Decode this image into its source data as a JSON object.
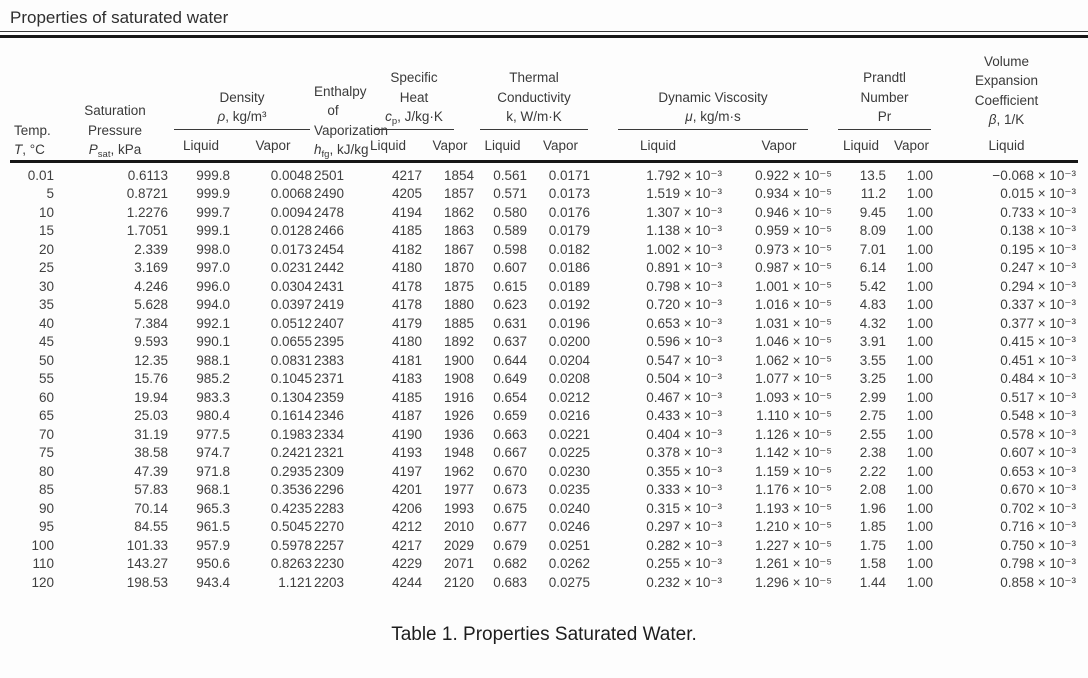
{
  "page": {
    "title": "Properties of saturated water",
    "caption": "Table 1. Properties Saturated Water."
  },
  "header": {
    "temp": {
      "line1": "Temp.",
      "sym": "T",
      "unit": ", °C"
    },
    "psat": {
      "line1": "Saturation",
      "line2": "Pressure",
      "sym": "P",
      "sub": "sat",
      "unit": ", kPa"
    },
    "density": {
      "line1": "Density",
      "sym": "ρ",
      "unit": ", kg/m³"
    },
    "hfg": {
      "line1": "Enthalpy",
      "line2": "of",
      "line3": "Vaporization",
      "sym": "h",
      "sub": "fg",
      "unit": ", kJ/kg"
    },
    "cp": {
      "line1": "Specific",
      "line2": "Heat",
      "sym": "c",
      "sub": "p",
      "unit": ", J/kg·K"
    },
    "k": {
      "line1": "Thermal",
      "line2": "Conductivity",
      "sym": "k",
      "unit": ", W/m·K"
    },
    "mu": {
      "line1": "Dynamic Viscosity",
      "sym": "μ",
      "unit": ", kg/m·s"
    },
    "pr": {
      "line1": "Prandtl",
      "line2": "Number",
      "sym": "Pr"
    },
    "beta": {
      "line1": "Volume",
      "line2": "Expansion",
      "line3": "Coefficient",
      "sym": "β",
      "unit": ", 1/K"
    },
    "sub_labels": {
      "liquid": "Liquid",
      "vapor": "Vapor"
    }
  },
  "table": {
    "col_keys": [
      "temp_c",
      "psat_kpa",
      "density_liquid",
      "density_vapor",
      "hfg_kj_kg",
      "cp_liquid",
      "cp_vapor",
      "k_liquid",
      "k_vapor",
      "mu_liquid",
      "mu_vapor",
      "pr_liquid",
      "pr_vapor",
      "beta_liquid"
    ],
    "rows": [
      [
        "0.01",
        "0.6113",
        "999.8",
        "0.0048",
        "2501",
        "4217",
        "1854",
        "0.561",
        "0.0171",
        "1.792 × 10⁻³",
        "0.922 × 10⁻⁵",
        "13.5",
        "1.00",
        "−0.068 × 10⁻³"
      ],
      [
        "5",
        "0.8721",
        "999.9",
        "0.0068",
        "2490",
        "4205",
        "1857",
        "0.571",
        "0.0173",
        "1.519 × 10⁻³",
        "0.934 × 10⁻⁵",
        "11.2",
        "1.00",
        "0.015 × 10⁻³"
      ],
      [
        "10",
        "1.2276",
        "999.7",
        "0.0094",
        "2478",
        "4194",
        "1862",
        "0.580",
        "0.0176",
        "1.307 × 10⁻³",
        "0.946 × 10⁻⁵",
        "9.45",
        "1.00",
        "0.733 × 10⁻³"
      ],
      [
        "15",
        "1.7051",
        "999.1",
        "0.0128",
        "2466",
        "4185",
        "1863",
        "0.589",
        "0.0179",
        "1.138 × 10⁻³",
        "0.959 × 10⁻⁵",
        "8.09",
        "1.00",
        "0.138 × 10⁻³"
      ],
      [
        "20",
        "2.339",
        "998.0",
        "0.0173",
        "2454",
        "4182",
        "1867",
        "0.598",
        "0.0182",
        "1.002 × 10⁻³",
        "0.973 × 10⁻⁵",
        "7.01",
        "1.00",
        "0.195 × 10⁻³"
      ],
      [
        "25",
        "3.169",
        "997.0",
        "0.0231",
        "2442",
        "4180",
        "1870",
        "0.607",
        "0.0186",
        "0.891 × 10⁻³",
        "0.987 × 10⁻⁵",
        "6.14",
        "1.00",
        "0.247 × 10⁻³"
      ],
      [
        "30",
        "4.246",
        "996.0",
        "0.0304",
        "2431",
        "4178",
        "1875",
        "0.615",
        "0.0189",
        "0.798 × 10⁻³",
        "1.001 × 10⁻⁵",
        "5.42",
        "1.00",
        "0.294 × 10⁻³"
      ],
      [
        "35",
        "5.628",
        "994.0",
        "0.0397",
        "2419",
        "4178",
        "1880",
        "0.623",
        "0.0192",
        "0.720 × 10⁻³",
        "1.016 × 10⁻⁵",
        "4.83",
        "1.00",
        "0.337 × 10⁻³"
      ],
      [
        "40",
        "7.384",
        "992.1",
        "0.0512",
        "2407",
        "4179",
        "1885",
        "0.631",
        "0.0196",
        "0.653 × 10⁻³",
        "1.031 × 10⁻⁵",
        "4.32",
        "1.00",
        "0.377 × 10⁻³"
      ],
      [
        "45",
        "9.593",
        "990.1",
        "0.0655",
        "2395",
        "4180",
        "1892",
        "0.637",
        "0.0200",
        "0.596 × 10⁻³",
        "1.046 × 10⁻⁵",
        "3.91",
        "1.00",
        "0.415 × 10⁻³"
      ],
      [
        "50",
        "12.35",
        "988.1",
        "0.0831",
        "2383",
        "4181",
        "1900",
        "0.644",
        "0.0204",
        "0.547 × 10⁻³",
        "1.062 × 10⁻⁵",
        "3.55",
        "1.00",
        "0.451 × 10⁻³"
      ],
      [
        "55",
        "15.76",
        "985.2",
        "0.1045",
        "2371",
        "4183",
        "1908",
        "0.649",
        "0.0208",
        "0.504 × 10⁻³",
        "1.077 × 10⁻⁵",
        "3.25",
        "1.00",
        "0.484 × 10⁻³"
      ],
      [
        "60",
        "19.94",
        "983.3",
        "0.1304",
        "2359",
        "4185",
        "1916",
        "0.654",
        "0.0212",
        "0.467 × 10⁻³",
        "1.093 × 10⁻⁵",
        "2.99",
        "1.00",
        "0.517 × 10⁻³"
      ],
      [
        "65",
        "25.03",
        "980.4",
        "0.1614",
        "2346",
        "4187",
        "1926",
        "0.659",
        "0.0216",
        "0.433 × 10⁻³",
        "1.110 × 10⁻⁵",
        "2.75",
        "1.00",
        "0.548 × 10⁻³"
      ],
      [
        "70",
        "31.19",
        "977.5",
        "0.1983",
        "2334",
        "4190",
        "1936",
        "0.663",
        "0.0221",
        "0.404 × 10⁻³",
        "1.126 × 10⁻⁵",
        "2.55",
        "1.00",
        "0.578 × 10⁻³"
      ],
      [
        "75",
        "38.58",
        "974.7",
        "0.2421",
        "2321",
        "4193",
        "1948",
        "0.667",
        "0.0225",
        "0.378 × 10⁻³",
        "1.142 × 10⁻⁵",
        "2.38",
        "1.00",
        "0.607 × 10⁻³"
      ],
      [
        "80",
        "47.39",
        "971.8",
        "0.2935",
        "2309",
        "4197",
        "1962",
        "0.670",
        "0.0230",
        "0.355 × 10⁻³",
        "1.159 × 10⁻⁵",
        "2.22",
        "1.00",
        "0.653 × 10⁻³"
      ],
      [
        "85",
        "57.83",
        "968.1",
        "0.3536",
        "2296",
        "4201",
        "1977",
        "0.673",
        "0.0235",
        "0.333 × 10⁻³",
        "1.176 × 10⁻⁵",
        "2.08",
        "1.00",
        "0.670 × 10⁻³"
      ],
      [
        "90",
        "70.14",
        "965.3",
        "0.4235",
        "2283",
        "4206",
        "1993",
        "0.675",
        "0.0240",
        "0.315 × 10⁻³",
        "1.193 × 10⁻⁵",
        "1.96",
        "1.00",
        "0.702 × 10⁻³"
      ],
      [
        "95",
        "84.55",
        "961.5",
        "0.5045",
        "2270",
        "4212",
        "2010",
        "0.677",
        "0.0246",
        "0.297 × 10⁻³",
        "1.210 × 10⁻⁵",
        "1.85",
        "1.00",
        "0.716 × 10⁻³"
      ],
      [
        "100",
        "101.33",
        "957.9",
        "0.5978",
        "2257",
        "4217",
        "2029",
        "0.679",
        "0.0251",
        "0.282 × 10⁻³",
        "1.227 × 10⁻⁵",
        "1.75",
        "1.00",
        "0.750 × 10⁻³"
      ],
      [
        "110",
        "143.27",
        "950.6",
        "0.8263",
        "2230",
        "4229",
        "2071",
        "0.682",
        "0.0262",
        "0.255 × 10⁻³",
        "1.261 × 10⁻⁵",
        "1.58",
        "1.00",
        "0.798 × 10⁻³"
      ],
      [
        "120",
        "198.53",
        "943.4",
        "1.121",
        "2203",
        "4244",
        "2120",
        "0.683",
        "0.0275",
        "0.232 × 10⁻³",
        "1.296 × 10⁻⁵",
        "1.44",
        "1.00",
        "0.858 × 10⁻³"
      ]
    ]
  }
}
